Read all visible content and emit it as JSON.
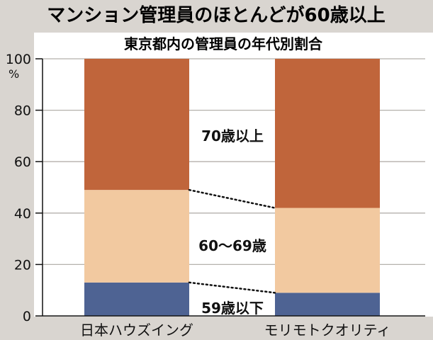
{
  "chart_data": {
    "type": "bar",
    "stacked": true,
    "title": "マンション管理員のほとんどが60歳以上",
    "subtitle": "東京都内の管理員の年代別割合",
    "ylabel": "%",
    "ylim": [
      0,
      100
    ],
    "yticks": [
      0,
      20,
      40,
      60,
      80,
      100
    ],
    "grid": true,
    "categories": [
      "日本ハウズイング",
      "モリモトクオリティ"
    ],
    "series": [
      {
        "name": "59歳以下",
        "values": [
          13,
          9
        ],
        "color": "#4e6393"
      },
      {
        "name": "60〜69歳",
        "values": [
          36,
          33
        ],
        "color": "#f2c9a0"
      },
      {
        "name": "70歳以上",
        "values": [
          51,
          58
        ],
        "color": "#c0653b"
      }
    ],
    "annotations": [
      "70歳以上",
      "60〜69歳",
      "59歳以下"
    ]
  },
  "colors": {
    "background": "#d9d5d0",
    "plot_background": "#ffffff",
    "grid": "#b5b1ac",
    "axis": "#111111",
    "connector": "#111111"
  }
}
